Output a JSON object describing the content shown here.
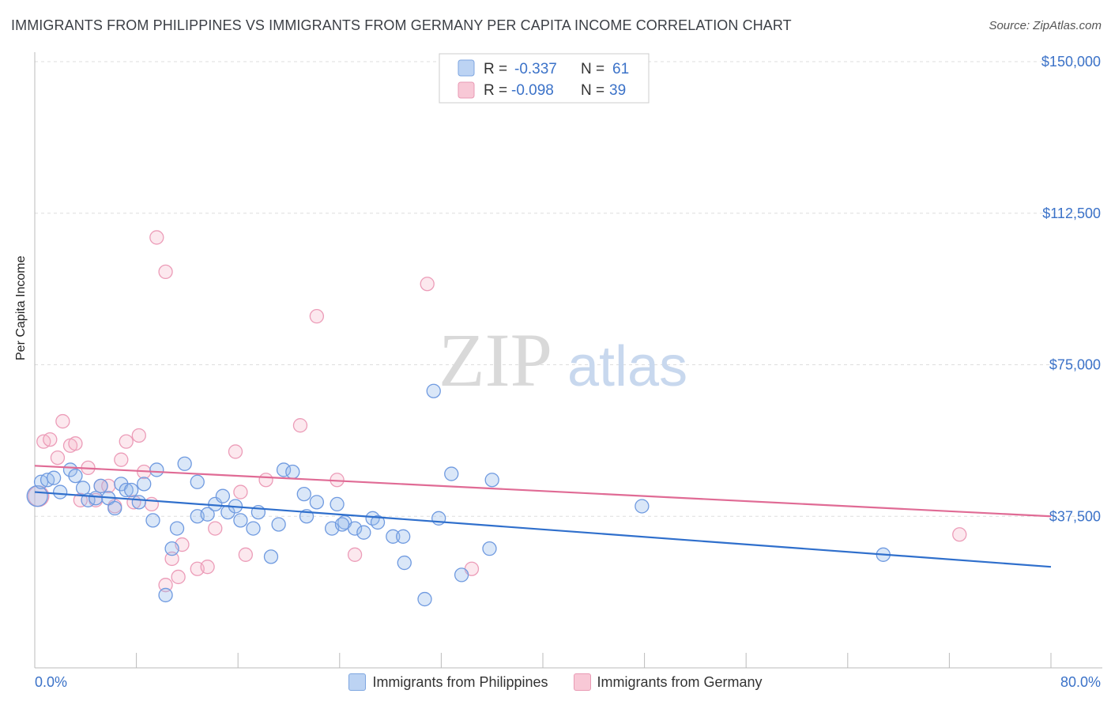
{
  "header": {
    "title": "IMMIGRANTS FROM PHILIPPINES VS IMMIGRANTS FROM GERMANY PER CAPITA INCOME CORRELATION CHART",
    "source": "Source: ZipAtlas.com"
  },
  "watermark": {
    "zip": "ZIP",
    "atlas": "atlas"
  },
  "legend_top": {
    "rows": [
      {
        "r_label": "R =",
        "r_value": "-0.337",
        "n_label": "N =",
        "n_value": "61"
      },
      {
        "r_label": "R =",
        "r_value": "-0.098",
        "n_label": "N =",
        "n_value": "39"
      }
    ]
  },
  "chart_data": {
    "type": "scatter",
    "title": "IMMIGRANTS FROM PHILIPPINES VS IMMIGRANTS FROM GERMANY PER CAPITA INCOME CORRELATION CHART",
    "xlabel": "",
    "ylabel": "Per Capita Income",
    "xlim": [
      0,
      80
    ],
    "ylim": [
      0,
      150000
    ],
    "y_ticks": [
      {
        "value": 37500,
        "label": "$37,500"
      },
      {
        "value": 75000,
        "label": "$75,000"
      },
      {
        "value": 112500,
        "label": "$112,500"
      },
      {
        "value": 150000,
        "label": "$150,000"
      }
    ],
    "x_tick_labels": {
      "min": "0.0%",
      "max": "80.0%"
    },
    "colors": {
      "philippines": "#5a8fd8",
      "germany": "#e88aa8",
      "philippines_line": "#2f6fcc",
      "germany_line": "#e06b95"
    },
    "series": [
      {
        "name": "Immigrants from Philippines",
        "r": -0.337,
        "n": 61,
        "trend": {
          "x": [
            0,
            80
          ],
          "y": [
            43500,
            25000
          ]
        },
        "points": [
          [
            0.2,
            42500
          ],
          [
            0.5,
            46000
          ],
          [
            1.0,
            46500
          ],
          [
            1.5,
            47000
          ],
          [
            2.0,
            43500
          ],
          [
            2.8,
            49000
          ],
          [
            3.2,
            47500
          ],
          [
            3.8,
            44500
          ],
          [
            4.2,
            41500
          ],
          [
            4.8,
            42000
          ],
          [
            5.2,
            45000
          ],
          [
            5.8,
            42000
          ],
          [
            6.3,
            39500
          ],
          [
            6.8,
            45500
          ],
          [
            7.2,
            44000
          ],
          [
            7.6,
            44000
          ],
          [
            8.2,
            41000
          ],
          [
            8.6,
            45500
          ],
          [
            9.6,
            49000
          ],
          [
            9.3,
            36500
          ],
          [
            10.8,
            29500
          ],
          [
            11.2,
            34500
          ],
          [
            11.8,
            50500
          ],
          [
            12.8,
            46000
          ],
          [
            12.8,
            37500
          ],
          [
            13.6,
            38000
          ],
          [
            14.2,
            40500
          ],
          [
            14.8,
            42500
          ],
          [
            15.2,
            38500
          ],
          [
            15.8,
            40000
          ],
          [
            16.2,
            36500
          ],
          [
            17.2,
            34500
          ],
          [
            17.6,
            38500
          ],
          [
            18.6,
            27500
          ],
          [
            19.2,
            35500
          ],
          [
            19.6,
            49000
          ],
          [
            20.3,
            48500
          ],
          [
            21.2,
            43000
          ],
          [
            21.4,
            37500
          ],
          [
            22.2,
            41000
          ],
          [
            23.4,
            34500
          ],
          [
            23.8,
            40500
          ],
          [
            24.4,
            36000
          ],
          [
            24.2,
            35500
          ],
          [
            25.2,
            34500
          ],
          [
            25.9,
            33500
          ],
          [
            26.6,
            37000
          ],
          [
            27.0,
            36000
          ],
          [
            28.2,
            32500
          ],
          [
            29.0,
            32500
          ],
          [
            29.1,
            26000
          ],
          [
            30.7,
            17000
          ],
          [
            31.4,
            68500
          ],
          [
            31.8,
            37000
          ],
          [
            32.8,
            48000
          ],
          [
            33.6,
            23000
          ],
          [
            35.8,
            29500
          ],
          [
            36.0,
            46500
          ],
          [
            47.8,
            40000
          ],
          [
            66.8,
            28000
          ],
          [
            10.3,
            18000
          ]
        ]
      },
      {
        "name": "Immigrants from Germany",
        "r": -0.098,
        "n": 39,
        "trend": {
          "x": [
            0,
            80
          ],
          "y": [
            50000,
            37500
          ]
        },
        "points": [
          [
            0.3,
            42500
          ],
          [
            0.7,
            56000
          ],
          [
            1.2,
            56500
          ],
          [
            1.8,
            52000
          ],
          [
            2.2,
            61000
          ],
          [
            2.8,
            55000
          ],
          [
            3.2,
            55500
          ],
          [
            3.6,
            41500
          ],
          [
            4.2,
            49500
          ],
          [
            4.8,
            41500
          ],
          [
            5.2,
            45000
          ],
          [
            5.8,
            45000
          ],
          [
            6.3,
            40000
          ],
          [
            6.8,
            51500
          ],
          [
            7.2,
            56000
          ],
          [
            7.8,
            41000
          ],
          [
            8.2,
            57500
          ],
          [
            8.6,
            48500
          ],
          [
            9.2,
            40500
          ],
          [
            9.6,
            106500
          ],
          [
            10.3,
            98000
          ],
          [
            10.3,
            20500
          ],
          [
            10.8,
            27000
          ],
          [
            11.3,
            22500
          ],
          [
            11.6,
            30500
          ],
          [
            12.8,
            24500
          ],
          [
            13.6,
            25000
          ],
          [
            14.2,
            34500
          ],
          [
            15.8,
            53500
          ],
          [
            16.2,
            43500
          ],
          [
            16.6,
            28000
          ],
          [
            18.2,
            46500
          ],
          [
            20.9,
            60000
          ],
          [
            22.2,
            87000
          ],
          [
            23.8,
            46500
          ],
          [
            25.2,
            28000
          ],
          [
            30.9,
            95000
          ],
          [
            34.4,
            24500
          ],
          [
            72.8,
            33000
          ]
        ]
      }
    ]
  },
  "bottom_legend": {
    "philippines_label": "Immigrants from Philippines",
    "germany_label": "Immigrants from Germany"
  }
}
